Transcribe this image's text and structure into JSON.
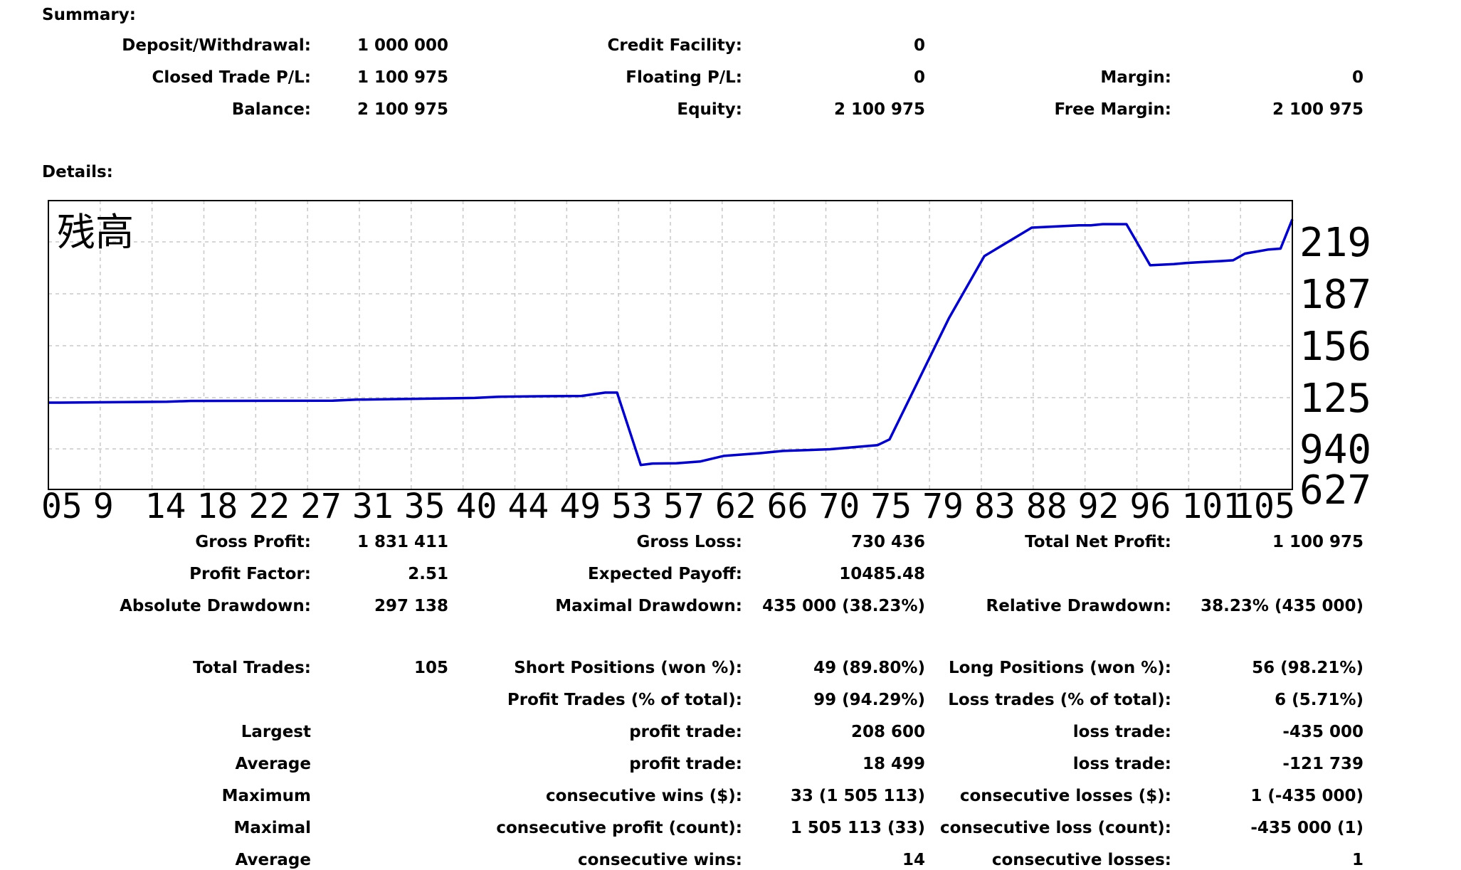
{
  "summary": {
    "heading": "Summary:",
    "rows": [
      [
        {
          "label": "Deposit/Withdrawal:",
          "value": "1 000 000"
        },
        {
          "label": "Credit Facility:",
          "value": "0"
        },
        null
      ],
      [
        {
          "label": "Closed Trade P/L:",
          "value": "1 100 975"
        },
        {
          "label": "Floating P/L:",
          "value": "0"
        },
        {
          "label": "Margin:",
          "value": "0"
        }
      ],
      [
        {
          "label": "Balance:",
          "value": "2 100 975"
        },
        {
          "label": "Equity:",
          "value": "2 100 975"
        },
        {
          "label": "Free Margin:",
          "value": "2 100 975"
        }
      ]
    ]
  },
  "details": {
    "heading": "Details:",
    "rows": [
      [
        {
          "label": "Gross Profit:",
          "value": "1 831 411"
        },
        {
          "label": "Gross Loss:",
          "value": "730 436"
        },
        {
          "label": "Total Net Profit:",
          "value": "1 100 975"
        }
      ],
      [
        {
          "label": "Profit Factor:",
          "value": "2.51"
        },
        {
          "label": "Expected Payoff:",
          "value": "10485.48"
        },
        null
      ],
      [
        {
          "label": "Absolute Drawdown:",
          "value": "297 138"
        },
        {
          "label": "Maximal Drawdown:",
          "value": "435 000 (38.23%)"
        },
        {
          "label": "Relative Drawdown:",
          "value": "38.23% (435 000)"
        }
      ],
      [
        {
          "label": "Total Trades:",
          "value": "105"
        },
        {
          "label": "Short Positions (won %):",
          "value": "49 (89.80%)"
        },
        {
          "label": "Long Positions (won %):",
          "value": "56 (98.21%)"
        }
      ],
      [
        null,
        {
          "label": "Profit Trades (% of total):",
          "value": "99 (94.29%)"
        },
        {
          "label": "Loss trades (% of total):",
          "value": "6 (5.71%)"
        }
      ],
      [
        {
          "label": "Largest",
          "value": ""
        },
        {
          "label": "profit trade:",
          "value": "208 600"
        },
        {
          "label": "loss trade:",
          "value": "-435 000"
        }
      ],
      [
        {
          "label": "Average",
          "value": ""
        },
        {
          "label": "profit trade:",
          "value": "18 499"
        },
        {
          "label": "loss trade:",
          "value": "-121 739"
        }
      ],
      [
        {
          "label": "Maximum",
          "value": ""
        },
        {
          "label": "consecutive wins ($):",
          "value": "33 (1 505 113)"
        },
        {
          "label": "consecutive losses ($):",
          "value": "1 (-435 000)"
        }
      ],
      [
        {
          "label": "Maximal",
          "value": ""
        },
        {
          "label": "consecutive profit (count):",
          "value": "1 505 113 (33)"
        },
        {
          "label": "consecutive loss (count):",
          "value": "-435 000 (1)"
        }
      ],
      [
        {
          "label": "Average",
          "value": ""
        },
        {
          "label": "consecutive wins:",
          "value": "14"
        },
        {
          "label": "consecutive losses:",
          "value": "1"
        }
      ]
    ]
  },
  "chart_data": {
    "type": "line",
    "title": "残高",
    "line_color": "#0000bb",
    "grid": true,
    "y_tick_labels": [
      "219",
      "187",
      "156",
      "125",
      "940",
      "627"
    ],
    "x_tick_labels": [
      "05",
      "9",
      "14",
      "18",
      "22",
      "27",
      "31",
      "35",
      "40",
      "44",
      "49",
      "53",
      "57",
      "62",
      "66",
      "70",
      "75",
      "79",
      "83",
      "88",
      "92",
      "96",
      "101",
      "105"
    ],
    "x": [
      0,
      1,
      10,
      12,
      24,
      26,
      36,
      38,
      41,
      45,
      47,
      48,
      50,
      51,
      53,
      55,
      57,
      60,
      62,
      66,
      70,
      71,
      76,
      79,
      83,
      87,
      88,
      89,
      91,
      93,
      95,
      96,
      97,
      99,
      100,
      101,
      103,
      104,
      105
    ],
    "y": [
      1000000,
      1000000,
      1005000,
      1010000,
      1012000,
      1018000,
      1028000,
      1035000,
      1038000,
      1040000,
      1060000,
      1060000,
      625000,
      634000,
      636000,
      646000,
      680000,
      696000,
      710000,
      720000,
      745000,
      779000,
      1505000,
      1880000,
      2051000,
      2065000,
      2065000,
      2072000,
      2072000,
      1825000,
      1832000,
      1838000,
      1843000,
      1850000,
      1855000,
      1895000,
      1920000,
      1925000,
      2100975
    ]
  }
}
